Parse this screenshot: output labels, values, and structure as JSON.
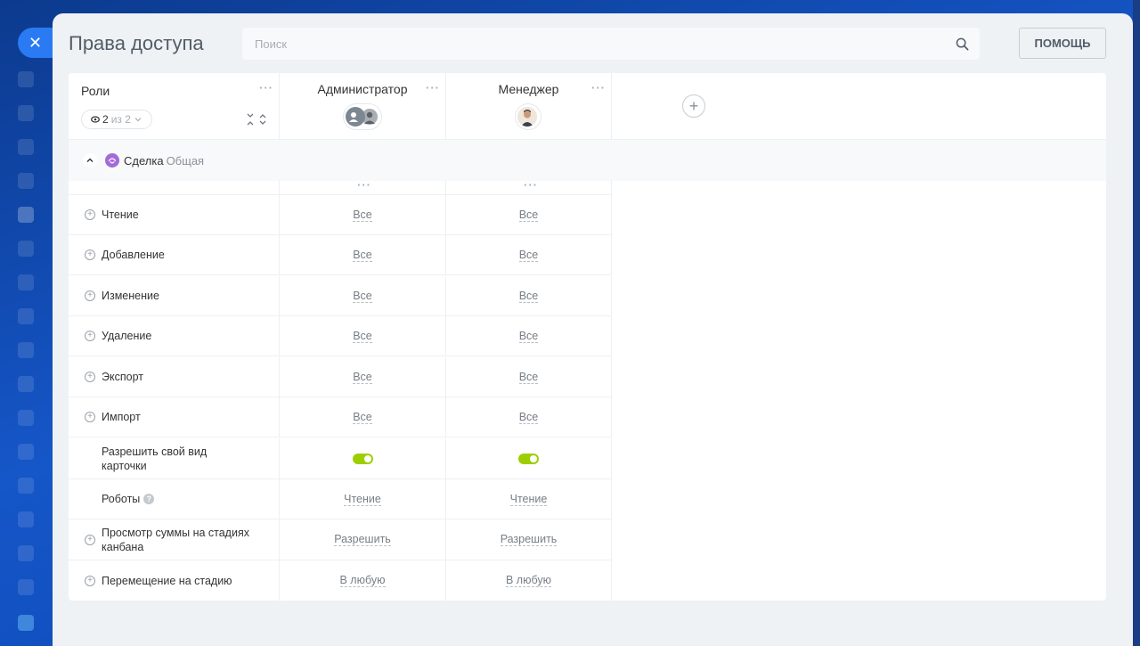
{
  "page": {
    "title": "Права доступа",
    "search_placeholder": "Поиск",
    "help_label": "ПОМОЩЬ"
  },
  "colors": {
    "accent": "#2a7bf3",
    "toggle_on": "#9dcf00",
    "section_icon": "#a46ad8"
  },
  "header": {
    "roles_label": "Роли",
    "counter_visible": "2",
    "counter_total": "из 2",
    "roles": [
      {
        "name": "Администратор"
      },
      {
        "name": "Менеджер"
      }
    ]
  },
  "section": {
    "title": "Сделка",
    "subtitle": "Общая"
  },
  "rows": [
    {
      "label": "Чтение",
      "expandable": true,
      "values": [
        "Все",
        "Все"
      ]
    },
    {
      "label": "Добавление",
      "expandable": true,
      "values": [
        "Все",
        "Все"
      ]
    },
    {
      "label": "Изменение",
      "expandable": true,
      "values": [
        "Все",
        "Все"
      ]
    },
    {
      "label": "Удаление",
      "expandable": true,
      "values": [
        "Все",
        "Все"
      ]
    },
    {
      "label": "Экспорт",
      "expandable": true,
      "values": [
        "Все",
        "Все"
      ]
    },
    {
      "label": "Импорт",
      "expandable": true,
      "values": [
        "Все",
        "Все"
      ]
    },
    {
      "label": "Разрешить свой вид карточки",
      "expandable": false,
      "values": [
        "on",
        "on"
      ],
      "type": "toggle"
    },
    {
      "label": "Роботы",
      "expandable": false,
      "values": [
        "Чтение",
        "Чтение"
      ],
      "help": true
    },
    {
      "label": "Просмотр суммы на стадиях канбана",
      "expandable": true,
      "values": [
        "Разрешить",
        "Разрешить"
      ]
    },
    {
      "label": "Перемещение на стадию",
      "expandable": true,
      "values": [
        "В любую",
        "В любую"
      ]
    }
  ]
}
